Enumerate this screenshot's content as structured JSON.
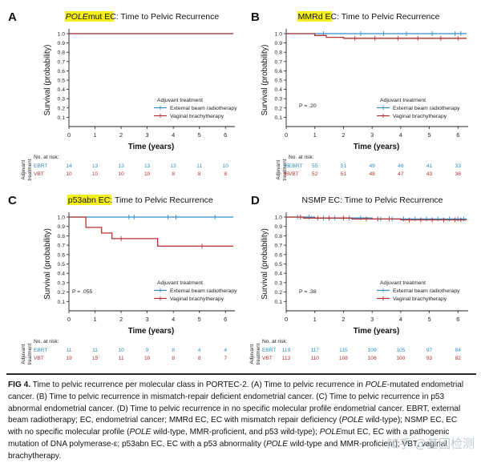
{
  "figure": {
    "panels": [
      "A",
      "B",
      "C",
      "D"
    ],
    "caption": {
      "label": "FIG 4.",
      "parts": [
        {
          "t": " Time to pelvic recurrence per molecular class in PORTEC-2. (A) Time to pelvic recurrence in "
        },
        {
          "t": "POLE",
          "i": true
        },
        {
          "t": "-mutated endometrial cancer. (B) Time to pelvic recurrence in mismatch-repair deficient endometrial cancer. (C) Time to pelvic recurrence in p53 abnormal endometrial cancer. (D) Time to pelvic recurrence in no specific molecular profile endometrial cancer. EBRT, external beam radiotherapy; EC, endometrial cancer; MMRd EC, EC with mismatch repair deficiency ("
        },
        {
          "t": "POLE",
          "i": true
        },
        {
          "t": " wild-type); NSMP EC, EC with no specific molecular profile ("
        },
        {
          "t": "POLE",
          "i": true
        },
        {
          "t": " wild-type, MMR-proficient, and p53 wild-type); "
        },
        {
          "t": "POLE",
          "i": true
        },
        {
          "t": "mut EC, EC with a pathogenic mutation of DNA polymerase-ε; p53abn EC, EC with a p53 abnormality ("
        },
        {
          "t": "POLE",
          "i": true
        },
        {
          "t": " wild-type and MMR-proficient); VBT, vaginal brachytherapy."
        }
      ]
    },
    "watermark": "知乎 @基因检测"
  },
  "chart_data": [
    {
      "type": "line",
      "panel": "A",
      "title_highlight": "POLE",
      "title_highlight_suffix": "mut EC",
      "title_rest": ": Time to Pelvic Recurrence",
      "title_italic_part": "POLE",
      "xlabel": "Time (years)",
      "ylabel": "Survival (probability)",
      "xlim": [
        0,
        6.3
      ],
      "ylim": [
        0,
        1.0
      ],
      "xticks": [
        0,
        1,
        2,
        3,
        4,
        5,
        6
      ],
      "yticks": [
        0.1,
        0.2,
        0.3,
        0.4,
        0.5,
        0.6,
        0.7,
        0.8,
        0.9,
        1.0
      ],
      "legend_title": "Adjuvant treatment",
      "legend": [
        "External beam radiotherapy",
        "Vaginal brachytherapy"
      ],
      "pvalue": "",
      "series": [
        {
          "name": "External beam radiotherapy",
          "color": "#2f8fc6",
          "steps": [
            [
              0,
              1.0
            ],
            [
              6.3,
              1.0
            ]
          ],
          "censor": []
        },
        {
          "name": "Vaginal brachytherapy",
          "color": "#b5312f",
          "steps": [
            [
              0,
              1.0
            ],
            [
              6.3,
              1.0
            ]
          ],
          "censor": []
        }
      ],
      "risk_title": "No. at risk:",
      "risk_side_label": [
        "Adjuvant",
        "treatment"
      ],
      "risk_rows": [
        {
          "label": "EBRT",
          "color": "#2f8fc6",
          "values": [
            "14",
            "13",
            "13",
            "13",
            "13",
            "11",
            "10"
          ]
        },
        {
          "label": "VBT",
          "color": "#b5312f",
          "values": [
            "10",
            "10",
            "10",
            "10",
            "8",
            "8",
            "8"
          ]
        }
      ]
    },
    {
      "type": "line",
      "panel": "B",
      "title_highlight": "MMRd EC",
      "title_highlight_suffix": "",
      "title_rest": ": Time to Pelvic Recurrence",
      "title_italic_part": "",
      "xlabel": "Time (years)",
      "ylabel": "Survival (probability)",
      "xlim": [
        0,
        6.3
      ],
      "ylim": [
        0,
        1.0
      ],
      "xticks": [
        0,
        1,
        2,
        3,
        4,
        5,
        6
      ],
      "yticks": [
        0.1,
        0.2,
        0.3,
        0.4,
        0.5,
        0.6,
        0.7,
        0.8,
        0.9,
        1.0
      ],
      "legend_title": "Adjuvant treatment",
      "legend": [
        "External beam radiotherapy",
        "Vaginal brachytherapy"
      ],
      "pvalue": "P = .20",
      "series": [
        {
          "name": "External beam radiotherapy",
          "color": "#2f8fc6",
          "steps": [
            [
              0,
              1.0
            ],
            [
              6.3,
              1.0
            ]
          ],
          "censor": [
            1.3,
            2.6,
            3.4,
            4.2,
            5.1,
            5.9,
            6.1
          ]
        },
        {
          "name": "Vaginal brachytherapy",
          "color": "#b5312f",
          "steps": [
            [
              0,
              1.0
            ],
            [
              1.0,
              1.0
            ],
            [
              1.0,
              0.98
            ],
            [
              1.4,
              0.98
            ],
            [
              1.4,
              0.96
            ],
            [
              2.0,
              0.96
            ],
            [
              2.0,
              0.95
            ],
            [
              6.3,
              0.95
            ]
          ],
          "censor": [
            2.4,
            3.1,
            3.9,
            4.6,
            5.4,
            6.0
          ]
        }
      ],
      "risk_title": "No. at risk:",
      "risk_side_label": [
        "Adjuvant",
        "treatment"
      ],
      "risk_rows": [
        {
          "label": "EBRT",
          "color": "#2f8fc6",
          "values": [
            "55",
            "55",
            "51",
            "49",
            "46",
            "41",
            "33"
          ]
        },
        {
          "label": "VBT",
          "color": "#b5312f",
          "values": [
            "55",
            "52",
            "51",
            "48",
            "47",
            "43",
            "36"
          ]
        }
      ]
    },
    {
      "type": "line",
      "panel": "C",
      "title_highlight": "p53abn EC",
      "title_highlight_suffix": "",
      "title_rest": ": Time to Pelvic Recurrence",
      "title_italic_part": "",
      "xlabel": "Time (years)",
      "ylabel": "Survival (probability)",
      "xlim": [
        0,
        6.3
      ],
      "ylim": [
        0,
        1.0
      ],
      "xticks": [
        0,
        1,
        2,
        3,
        4,
        5,
        6
      ],
      "yticks": [
        0.1,
        0.2,
        0.3,
        0.4,
        0.5,
        0.6,
        0.7,
        0.8,
        0.9,
        1.0
      ],
      "legend_title": "Adjuvant treatment",
      "legend": [
        "External beam radiotherapy",
        "Vaginal brachytherapy"
      ],
      "pvalue": "P = .055",
      "series": [
        {
          "name": "External beam radiotherapy",
          "color": "#2f8fc6",
          "steps": [
            [
              0,
              1.0
            ],
            [
              6.3,
              1.0
            ]
          ],
          "censor": [
            2.3,
            2.5,
            3.8,
            4.1,
            5.6
          ]
        },
        {
          "name": "Vaginal brachytherapy",
          "color": "#b5312f",
          "steps": [
            [
              0,
              1.0
            ],
            [
              0.65,
              1.0
            ],
            [
              0.65,
              0.89
            ],
            [
              1.25,
              0.89
            ],
            [
              1.25,
              0.83
            ],
            [
              1.65,
              0.83
            ],
            [
              1.65,
              0.77
            ],
            [
              3.4,
              0.77
            ],
            [
              3.4,
              0.69
            ],
            [
              6.3,
              0.69
            ]
          ],
          "censor": [
            2.0,
            5.1
          ]
        }
      ],
      "risk_title": "No. at risk:",
      "risk_side_label": [
        "Adjuvant",
        "treatment"
      ],
      "risk_rows": [
        {
          "label": "EBRT",
          "color": "#2f8fc6",
          "values": [
            "11",
            "11",
            "10",
            "9",
            "8",
            "4",
            "4"
          ]
        },
        {
          "label": "VBT",
          "color": "#b5312f",
          "values": [
            "19",
            "15",
            "11",
            "10",
            "8",
            "8",
            "7"
          ]
        }
      ]
    },
    {
      "type": "line",
      "panel": "D",
      "title_highlight": "",
      "title_highlight_suffix": "",
      "title_rest": "NSMP EC: Time to Pelvic Recurrence",
      "title_italic_part": "",
      "xlabel": "Time (years)",
      "ylabel": "Survival (probability)",
      "xlim": [
        0,
        6.3
      ],
      "ylim": [
        0,
        1.0
      ],
      "xticks": [
        0,
        1,
        2,
        3,
        4,
        5,
        6
      ],
      "yticks": [
        0.1,
        0.2,
        0.3,
        0.4,
        0.5,
        0.6,
        0.7,
        0.8,
        0.9,
        1.0
      ],
      "legend_title": "Adjuvant treatment",
      "legend": [
        "External beam radiotherapy",
        "Vaginal brachytherapy"
      ],
      "pvalue": "P = .38",
      "series": [
        {
          "name": "External beam radiotherapy",
          "color": "#2f8fc6",
          "steps": [
            [
              0,
              1.0
            ],
            [
              1.0,
              1.0
            ],
            [
              1.0,
              0.99
            ],
            [
              3.0,
              0.99
            ],
            [
              3.0,
              0.98
            ],
            [
              6.3,
              0.98
            ]
          ],
          "censor": [
            0.4,
            0.8,
            1.3,
            1.7,
            2.2,
            2.6,
            3.3,
            3.7,
            4.1,
            4.5,
            4.9,
            5.3,
            5.7,
            6.0,
            6.2
          ]
        },
        {
          "name": "Vaginal brachytherapy",
          "color": "#b5312f",
          "steps": [
            [
              0,
              1.0
            ],
            [
              0.6,
              1.0
            ],
            [
              0.6,
              0.99
            ],
            [
              2.3,
              0.99
            ],
            [
              2.3,
              0.98
            ],
            [
              4.0,
              0.98
            ],
            [
              4.0,
              0.97
            ],
            [
              6.3,
              0.97
            ]
          ],
          "censor": [
            0.5,
            1.1,
            1.5,
            2.0,
            2.8,
            3.2,
            3.6,
            4.3,
            4.7,
            5.1,
            5.5,
            5.9,
            6.1
          ]
        }
      ],
      "risk_title": "No. at risk:",
      "risk_side_label": [
        "Adjuvant",
        "treatment"
      ],
      "risk_rows": [
        {
          "label": "EBRT",
          "color": "#2f8fc6",
          "values": [
            "119",
            "117",
            "115",
            "109",
            "105",
            "97",
            "84"
          ]
        },
        {
          "label": "VBT",
          "color": "#b5312f",
          "values": [
            "113",
            "110",
            "108",
            "106",
            "100",
            "93",
            "82"
          ]
        }
      ]
    }
  ]
}
